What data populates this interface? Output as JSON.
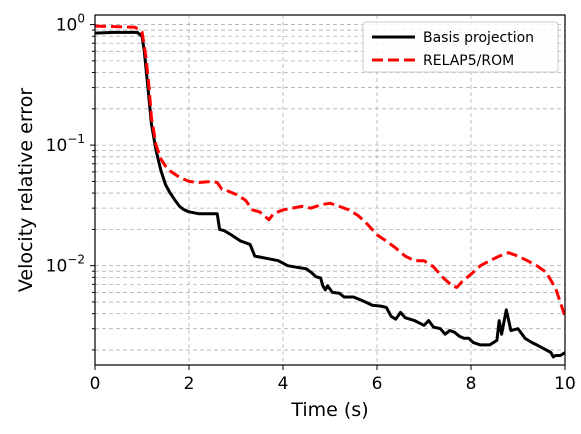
{
  "chart_data": {
    "type": "line",
    "title": "",
    "xlabel": "Time (s)",
    "ylabel": "Velocity relative error",
    "xlim": [
      0,
      10
    ],
    "ylim": [
      0.0015,
      1.2
    ],
    "yscale": "log",
    "grid": true,
    "grid_minor_y": true,
    "legend_position": "top-right",
    "x_ticks": [
      0,
      2,
      4,
      6,
      8,
      10
    ],
    "x_tick_labels": [
      "0",
      "2",
      "4",
      "6",
      "8",
      "10"
    ],
    "y_ticks": [
      1,
      0.1,
      0.01
    ],
    "y_tick_labels": [
      {
        "base": "10",
        "exp": "0"
      },
      {
        "base": "10",
        "exp": "−1"
      },
      {
        "base": "10",
        "exp": "−2"
      }
    ],
    "series": [
      {
        "name": "Basis projection",
        "color": "#000000",
        "style": "solid",
        "points": [
          [
            0,
            0.85
          ],
          [
            0.4,
            0.86
          ],
          [
            0.9,
            0.86
          ],
          [
            1.0,
            0.8
          ],
          [
            1.05,
            0.6
          ],
          [
            1.12,
            0.32
          ],
          [
            1.2,
            0.15
          ],
          [
            1.3,
            0.09
          ],
          [
            1.4,
            0.062
          ],
          [
            1.5,
            0.047
          ],
          [
            1.6,
            0.04
          ],
          [
            1.7,
            0.035
          ],
          [
            1.8,
            0.031
          ],
          [
            1.9,
            0.029
          ],
          [
            2.0,
            0.028
          ],
          [
            2.2,
            0.027
          ],
          [
            2.6,
            0.027
          ],
          [
            2.65,
            0.02
          ],
          [
            2.75,
            0.0195
          ],
          [
            2.9,
            0.018
          ],
          [
            3.1,
            0.016
          ],
          [
            3.3,
            0.015
          ],
          [
            3.4,
            0.012
          ],
          [
            3.5,
            0.0118
          ],
          [
            3.7,
            0.0114
          ],
          [
            3.9,
            0.011
          ],
          [
            4.1,
            0.01
          ],
          [
            4.3,
            0.0097
          ],
          [
            4.5,
            0.0094
          ],
          [
            4.6,
            0.0088
          ],
          [
            4.7,
            0.0081
          ],
          [
            4.8,
            0.0079
          ],
          [
            4.85,
            0.0068
          ],
          [
            4.9,
            0.0063
          ],
          [
            4.95,
            0.0068
          ],
          [
            5.05,
            0.006
          ],
          [
            5.2,
            0.0059
          ],
          [
            5.3,
            0.0055
          ],
          [
            5.5,
            0.0055
          ],
          [
            5.7,
            0.0051
          ],
          [
            5.9,
            0.0047
          ],
          [
            6.1,
            0.0046
          ],
          [
            6.2,
            0.0045
          ],
          [
            6.3,
            0.0038
          ],
          [
            6.4,
            0.0036
          ],
          [
            6.5,
            0.0041
          ],
          [
            6.6,
            0.0037
          ],
          [
            6.7,
            0.0036
          ],
          [
            6.8,
            0.0035
          ],
          [
            7.0,
            0.0032
          ],
          [
            7.1,
            0.0035
          ],
          [
            7.2,
            0.0031
          ],
          [
            7.35,
            0.003
          ],
          [
            7.45,
            0.0027
          ],
          [
            7.55,
            0.0029
          ],
          [
            7.65,
            0.0028
          ],
          [
            7.75,
            0.0026
          ],
          [
            7.85,
            0.0025
          ],
          [
            7.95,
            0.0025
          ],
          [
            8.05,
            0.0023
          ],
          [
            8.2,
            0.0022
          ],
          [
            8.3,
            0.0022
          ],
          [
            8.4,
            0.0022
          ],
          [
            8.55,
            0.0024
          ],
          [
            8.6,
            0.0035
          ],
          [
            8.65,
            0.0027
          ],
          [
            8.75,
            0.0043
          ],
          [
            8.85,
            0.0029
          ],
          [
            9.0,
            0.003
          ],
          [
            9.15,
            0.0025
          ],
          [
            9.3,
            0.0023
          ],
          [
            9.4,
            0.0022
          ],
          [
            9.5,
            0.0021
          ],
          [
            9.6,
            0.002
          ],
          [
            9.7,
            0.0019
          ],
          [
            9.75,
            0.00175
          ],
          [
            9.8,
            0.0018
          ],
          [
            9.9,
            0.0018
          ],
          [
            10.0,
            0.0019
          ]
        ]
      },
      {
        "name": "RELAP5/ROM",
        "color": "#ff0000",
        "style": "dashed",
        "points": [
          [
            0,
            0.97
          ],
          [
            0.5,
            0.96
          ],
          [
            0.85,
            0.95
          ],
          [
            1.0,
            0.87
          ],
          [
            1.08,
            0.55
          ],
          [
            1.15,
            0.3
          ],
          [
            1.2,
            0.17
          ],
          [
            1.3,
            0.1
          ],
          [
            1.4,
            0.077
          ],
          [
            1.5,
            0.067
          ],
          [
            1.6,
            0.061
          ],
          [
            1.8,
            0.054
          ],
          [
            2.0,
            0.05
          ],
          [
            2.2,
            0.049
          ],
          [
            2.5,
            0.05
          ],
          [
            2.6,
            0.049
          ],
          [
            2.7,
            0.043
          ],
          [
            2.8,
            0.042
          ],
          [
            3.0,
            0.039
          ],
          [
            3.2,
            0.035
          ],
          [
            3.35,
            0.029
          ],
          [
            3.5,
            0.028
          ],
          [
            3.6,
            0.026
          ],
          [
            3.7,
            0.024
          ],
          [
            3.8,
            0.027
          ],
          [
            4.0,
            0.029
          ],
          [
            4.2,
            0.03
          ],
          [
            4.4,
            0.031
          ],
          [
            4.6,
            0.03
          ],
          [
            4.8,
            0.032
          ],
          [
            5.0,
            0.033
          ],
          [
            5.2,
            0.031
          ],
          [
            5.4,
            0.029
          ],
          [
            5.6,
            0.026
          ],
          [
            5.8,
            0.022
          ],
          [
            6.0,
            0.018
          ],
          [
            6.2,
            0.016
          ],
          [
            6.4,
            0.014
          ],
          [
            6.6,
            0.012
          ],
          [
            6.8,
            0.011
          ],
          [
            7.0,
            0.011
          ],
          [
            7.2,
            0.0098
          ],
          [
            7.4,
            0.008
          ],
          [
            7.6,
            0.0068
          ],
          [
            7.7,
            0.0066
          ],
          [
            7.8,
            0.0073
          ],
          [
            8.0,
            0.0085
          ],
          [
            8.2,
            0.01
          ],
          [
            8.4,
            0.011
          ],
          [
            8.6,
            0.012
          ],
          [
            8.8,
            0.0128
          ],
          [
            9.0,
            0.012
          ],
          [
            9.2,
            0.011
          ],
          [
            9.4,
            0.01
          ],
          [
            9.6,
            0.0088
          ],
          [
            9.8,
            0.0065
          ],
          [
            10.0,
            0.0038
          ]
        ]
      }
    ]
  }
}
